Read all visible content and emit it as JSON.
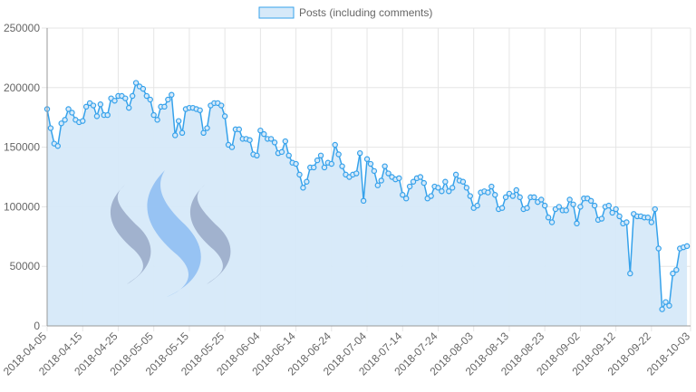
{
  "chart_data": {
    "type": "area",
    "title": "",
    "xlabel": "",
    "ylabel": "",
    "legend": {
      "position": "top",
      "label": "Posts (including comments)"
    },
    "grid": true,
    "ylim": [
      0,
      250000
    ],
    "yticks": [
      "250000",
      "200000",
      "150000",
      "100000",
      "50000",
      "0"
    ],
    "xlim": [
      "2018-04-05",
      "2018-10-03"
    ],
    "xticks": [
      "2018-04-05",
      "2018-04-15",
      "2018-04-25",
      "2018-05-05",
      "2018-05-15",
      "2018-05-25",
      "2018-06-04",
      "2018-06-14",
      "2018-06-24",
      "2018-07-04",
      "2018-07-14",
      "2018-07-24",
      "2018-08-03",
      "2018-08-13",
      "2018-08-23",
      "2018-09-02",
      "2018-09-12",
      "2018-09-22",
      "2018-10-03"
    ],
    "colors": {
      "line": "#36a2eb",
      "fill": "#d6e9f9",
      "grid": "#e5e5e5",
      "axis": "#999999",
      "logo_dark": "#8f9fbf",
      "logo_blue": "#8cbcf2"
    },
    "series": [
      {
        "name": "Posts (including comments)",
        "start_date": "2018-04-05",
        "values": [
          182000,
          166000,
          153000,
          151000,
          170000,
          173000,
          182000,
          179000,
          173000,
          171000,
          172000,
          184000,
          187000,
          185000,
          176000,
          186000,
          177000,
          177000,
          191000,
          189000,
          193000,
          193000,
          191000,
          183000,
          193000,
          204000,
          201000,
          199000,
          193000,
          190000,
          177000,
          173000,
          184000,
          184000,
          190000,
          194000,
          160000,
          172000,
          162000,
          182000,
          183000,
          183000,
          182000,
          181000,
          162000,
          166000,
          185000,
          187000,
          187000,
          185000,
          176000,
          152000,
          150000,
          165000,
          165000,
          157000,
          157000,
          156000,
          144000,
          143000,
          164000,
          161000,
          157000,
          157000,
          154000,
          145000,
          146000,
          155000,
          143000,
          137000,
          136000,
          127000,
          116000,
          121000,
          133000,
          133000,
          139000,
          143000,
          133000,
          137000,
          136000,
          152000,
          144000,
          134000,
          127000,
          125000,
          127000,
          128000,
          145000,
          105000,
          140000,
          136000,
          130000,
          118000,
          122000,
          134000,
          128000,
          125000,
          123000,
          124000,
          110000,
          107000,
          117000,
          121000,
          124000,
          125000,
          120000,
          107000,
          109000,
          117000,
          116000,
          113000,
          121000,
          113000,
          116000,
          127000,
          122000,
          121000,
          116000,
          109000,
          99000,
          101000,
          112000,
          113000,
          112000,
          117000,
          110000,
          98000,
          99000,
          108000,
          111000,
          109000,
          114000,
          108000,
          98000,
          99000,
          108000,
          108000,
          104000,
          106000,
          101000,
          91000,
          87000,
          98000,
          100000,
          97000,
          97000,
          106000,
          102000,
          86000,
          100000,
          107000,
          107000,
          105000,
          101000,
          89000,
          90000,
          100000,
          101000,
          95000,
          98000,
          92000,
          86000,
          87000,
          44000,
          94000,
          92000,
          92000,
          91000,
          91000,
          87000,
          98000,
          65000,
          14000,
          20000,
          17000,
          44000,
          47000,
          65000,
          66000,
          67000
        ]
      }
    ]
  }
}
